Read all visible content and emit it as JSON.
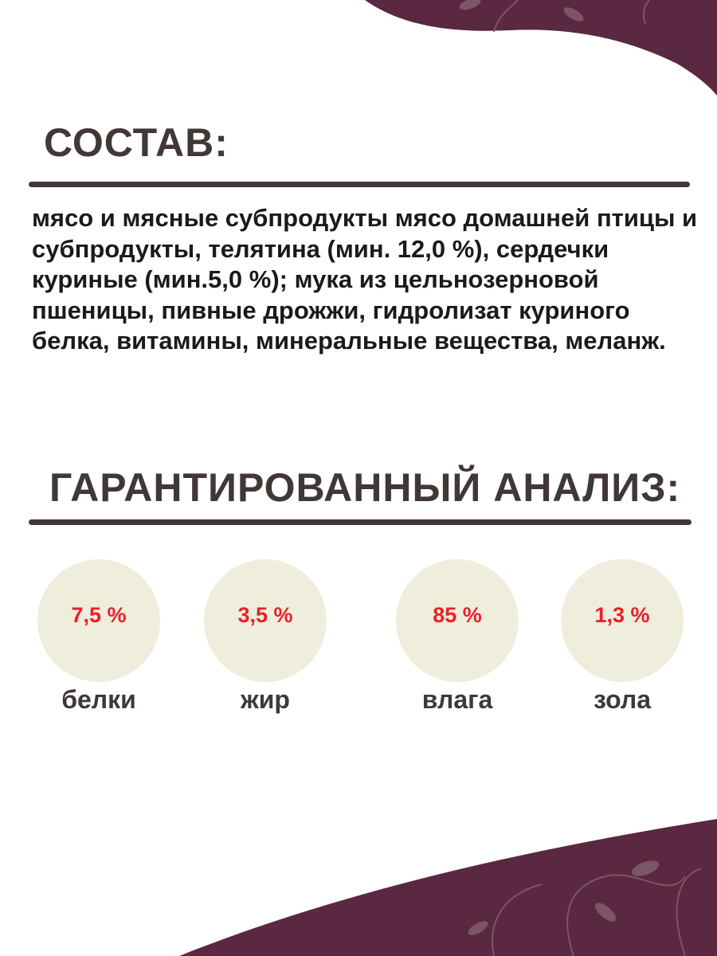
{
  "composition": {
    "title": "СОСТАВ:",
    "text": "мясо и мясные субпродукты мясо домашней птицы и субпродукты, телятина (мин. 12,0 %), сердечки куриные (мин.5,0 %); мука из цельнозерновой пшеницы, пивные дрожжи, гидролизат куриного белка, витамины, минеральные вещества, меланж."
  },
  "analysis": {
    "title": "ГАРАНТИРОВАННЫЙ АНАЛИЗ:",
    "items": [
      {
        "value": "7,5 %",
        "label": "белки"
      },
      {
        "value": "3,5 %",
        "label": "жир"
      },
      {
        "value": "85 %",
        "label": "влага"
      },
      {
        "value": "1,3 %",
        "label": "зола"
      }
    ]
  },
  "colors": {
    "accent": "#5a2840",
    "text": "#403836",
    "value": "#e8202a",
    "circle": "#efeddc"
  }
}
